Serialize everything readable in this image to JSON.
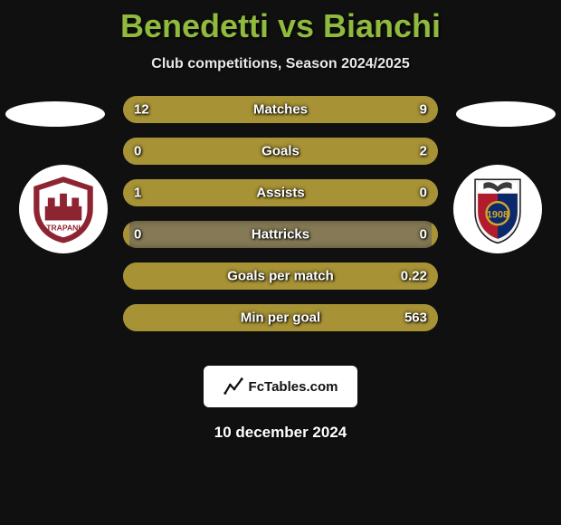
{
  "title": "Benedetti vs Bianchi",
  "subtitle": "Club competitions, Season 2024/2025",
  "date": "10 december 2024",
  "attribution": "FcTables.com",
  "colors": {
    "title": "#8fba3e",
    "bar_bg": "#857a55",
    "bar_fill": "#a79235",
    "page_bg": "#101010"
  },
  "bars": [
    {
      "label": "Matches",
      "left": "12",
      "right": "9",
      "left_pct": 57,
      "right_pct": 43
    },
    {
      "label": "Goals",
      "left": "0",
      "right": "2",
      "left_pct": 2,
      "right_pct": 98
    },
    {
      "label": "Assists",
      "left": "1",
      "right": "0",
      "left_pct": 98,
      "right_pct": 2
    },
    {
      "label": "Hattricks",
      "left": "0",
      "right": "0",
      "left_pct": 2,
      "right_pct": 2
    },
    {
      "label": "Goals per match",
      "left": "",
      "right": "0.22",
      "left_pct": 2,
      "right_pct": 98
    },
    {
      "label": "Min per goal",
      "left": "",
      "right": "563",
      "left_pct": 2,
      "right_pct": 98
    }
  ],
  "crests": {
    "left": {
      "name": "Trapani Calcio",
      "primary": "#8e2431",
      "secondary": "#ffffff"
    },
    "right": {
      "name": "Casertana FC",
      "primary": "#b01c2e",
      "secondary": "#0b2a6b"
    }
  }
}
